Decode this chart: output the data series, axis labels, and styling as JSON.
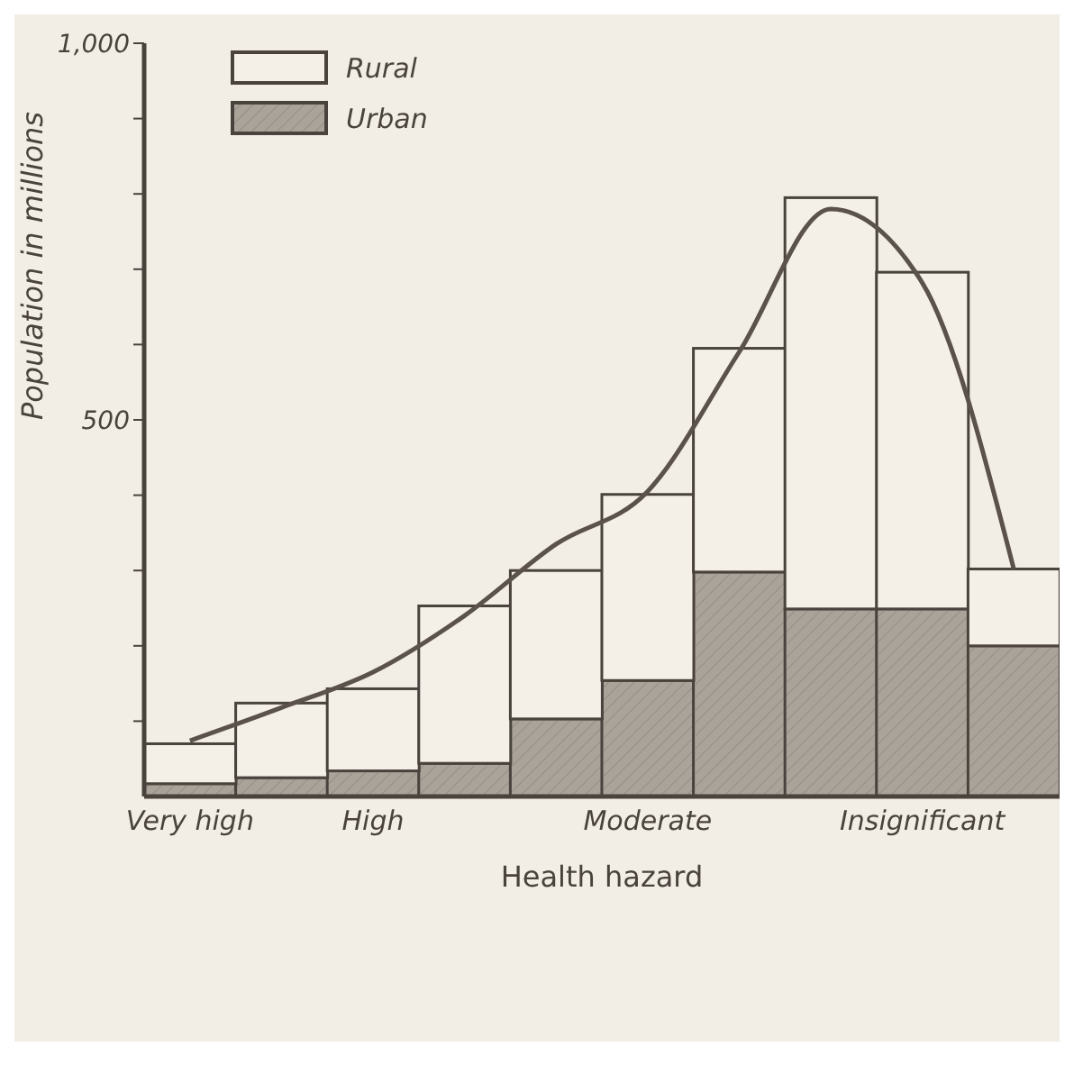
{
  "chart_data": {
    "type": "bar",
    "stacked": true,
    "xlabel": "Health hazard",
    "ylabel": "Population in millions",
    "categories": [
      "Very high",
      null,
      "High",
      null,
      null,
      "Moderate",
      null,
      null,
      "Insignificant",
      null
    ],
    "series": [
      {
        "name": "Urban",
        "color": "#aaa39a",
        "values": [
          17,
          25,
          34,
          44,
          103,
          154,
          298,
          249,
          249,
          200
        ]
      },
      {
        "name": "Rural",
        "color": "#f4f0e8",
        "values": [
          53,
          99,
          109,
          209,
          197,
          247,
          297,
          546,
          447,
          102
        ]
      },
      {
        "type": "line",
        "color": "#5a524b",
        "values": [
          74,
          118,
          165,
          240,
          335,
          405,
          590,
          780,
          682,
          302
        ]
      }
    ],
    "ylim": [
      0,
      1000
    ],
    "yticks": [
      {
        "value": 100,
        "label": null
      },
      {
        "value": 200,
        "label": null
      },
      {
        "value": 300,
        "label": null
      },
      {
        "value": 400,
        "label": null
      },
      {
        "value": 500,
        "label": "500"
      },
      {
        "value": 600,
        "label": null
      },
      {
        "value": 700,
        "label": null
      },
      {
        "value": 800,
        "label": null
      },
      {
        "value": 900,
        "label": null
      },
      {
        "value": 1000,
        "label": "1,000"
      }
    ],
    "legend": "top left",
    "grid": false,
    "marker": "none"
  }
}
